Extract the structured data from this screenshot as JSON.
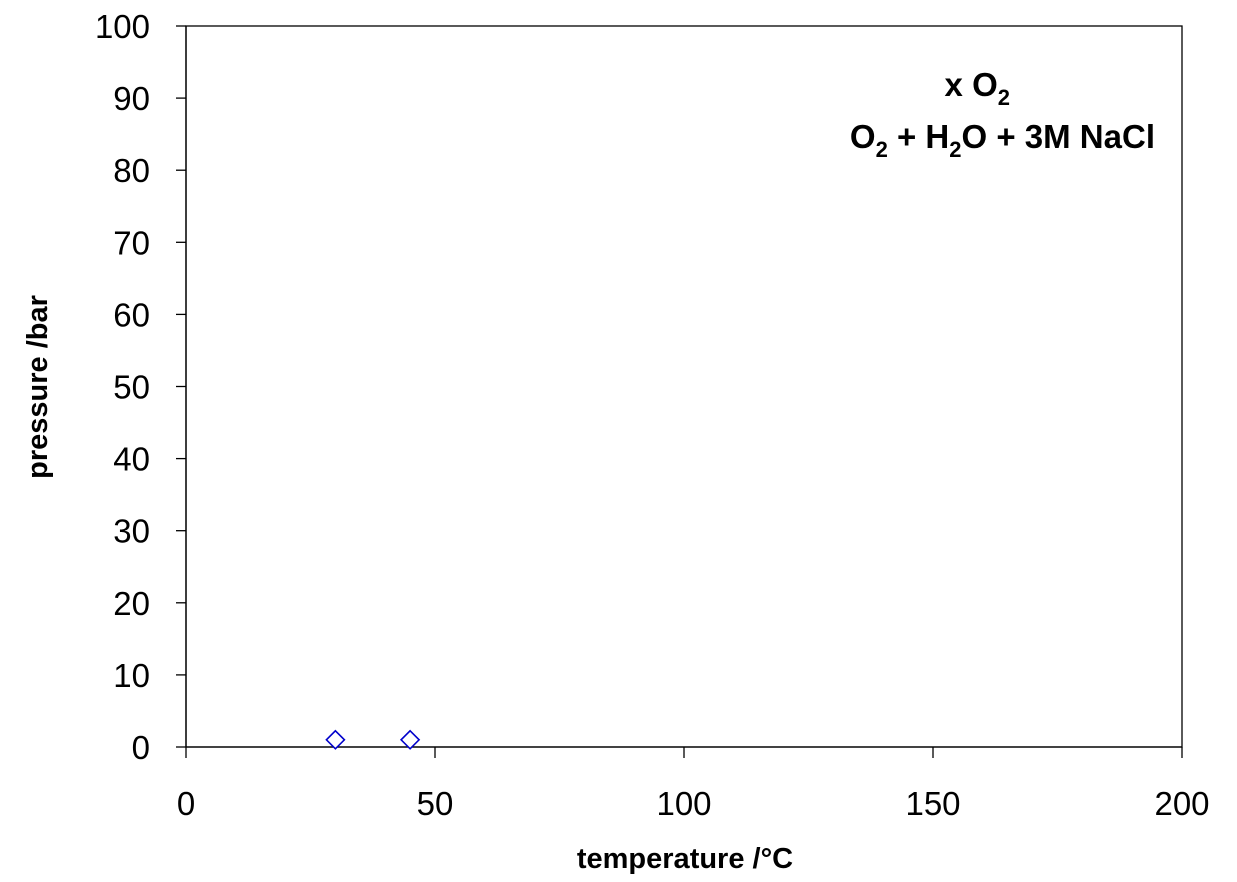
{
  "chart_data": {
    "type": "scatter",
    "title": "",
    "xlabel": "temperature /°C",
    "ylabel": "pressure /bar",
    "xlim": [
      0,
      200
    ],
    "ylim": [
      0,
      100
    ],
    "xticks": [
      0,
      50,
      100,
      150,
      200
    ],
    "yticks": [
      0,
      10,
      20,
      30,
      40,
      50,
      60,
      70,
      80,
      90,
      100
    ],
    "grid": false,
    "annotation": {
      "line1": {
        "prefix": "x O",
        "sub": "2",
        "suffix": ""
      },
      "line2": {
        "parts": [
          "O",
          "2",
          " + H",
          "2",
          "O + 3M NaCl"
        ]
      }
    },
    "series": [
      {
        "marker": "diamond-open",
        "color": "#0000cc",
        "points": [
          {
            "x": 30,
            "y": 1
          },
          {
            "x": 45,
            "y": 1
          }
        ]
      }
    ]
  }
}
